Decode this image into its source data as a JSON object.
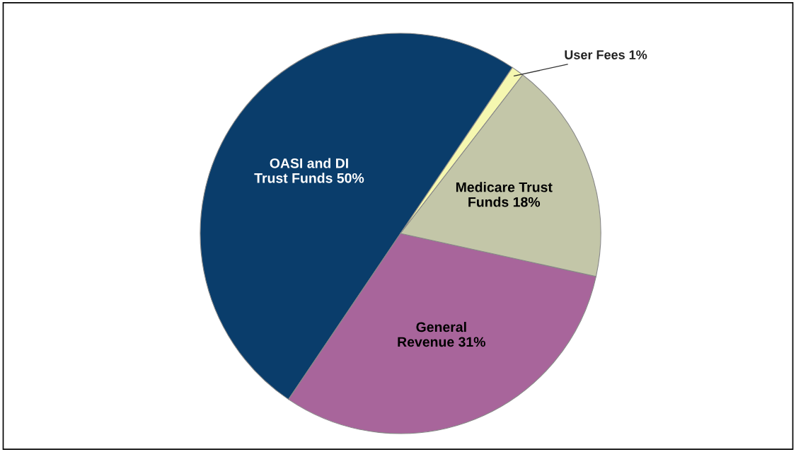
{
  "chart_data": {
    "type": "pie",
    "categories": [
      "OASI and DI\nTrust Funds",
      "General\nRevenue",
      "Medicare Trust\nFunds",
      "User Fees"
    ],
    "values": [
      50,
      31,
      18,
      1
    ],
    "value_labels": [
      "50%",
      "31%",
      "18%",
      "1%"
    ],
    "colors": [
      "#0a3d6b",
      "#a8659b",
      "#c3c6a8",
      "#f5f7b0"
    ]
  }
}
